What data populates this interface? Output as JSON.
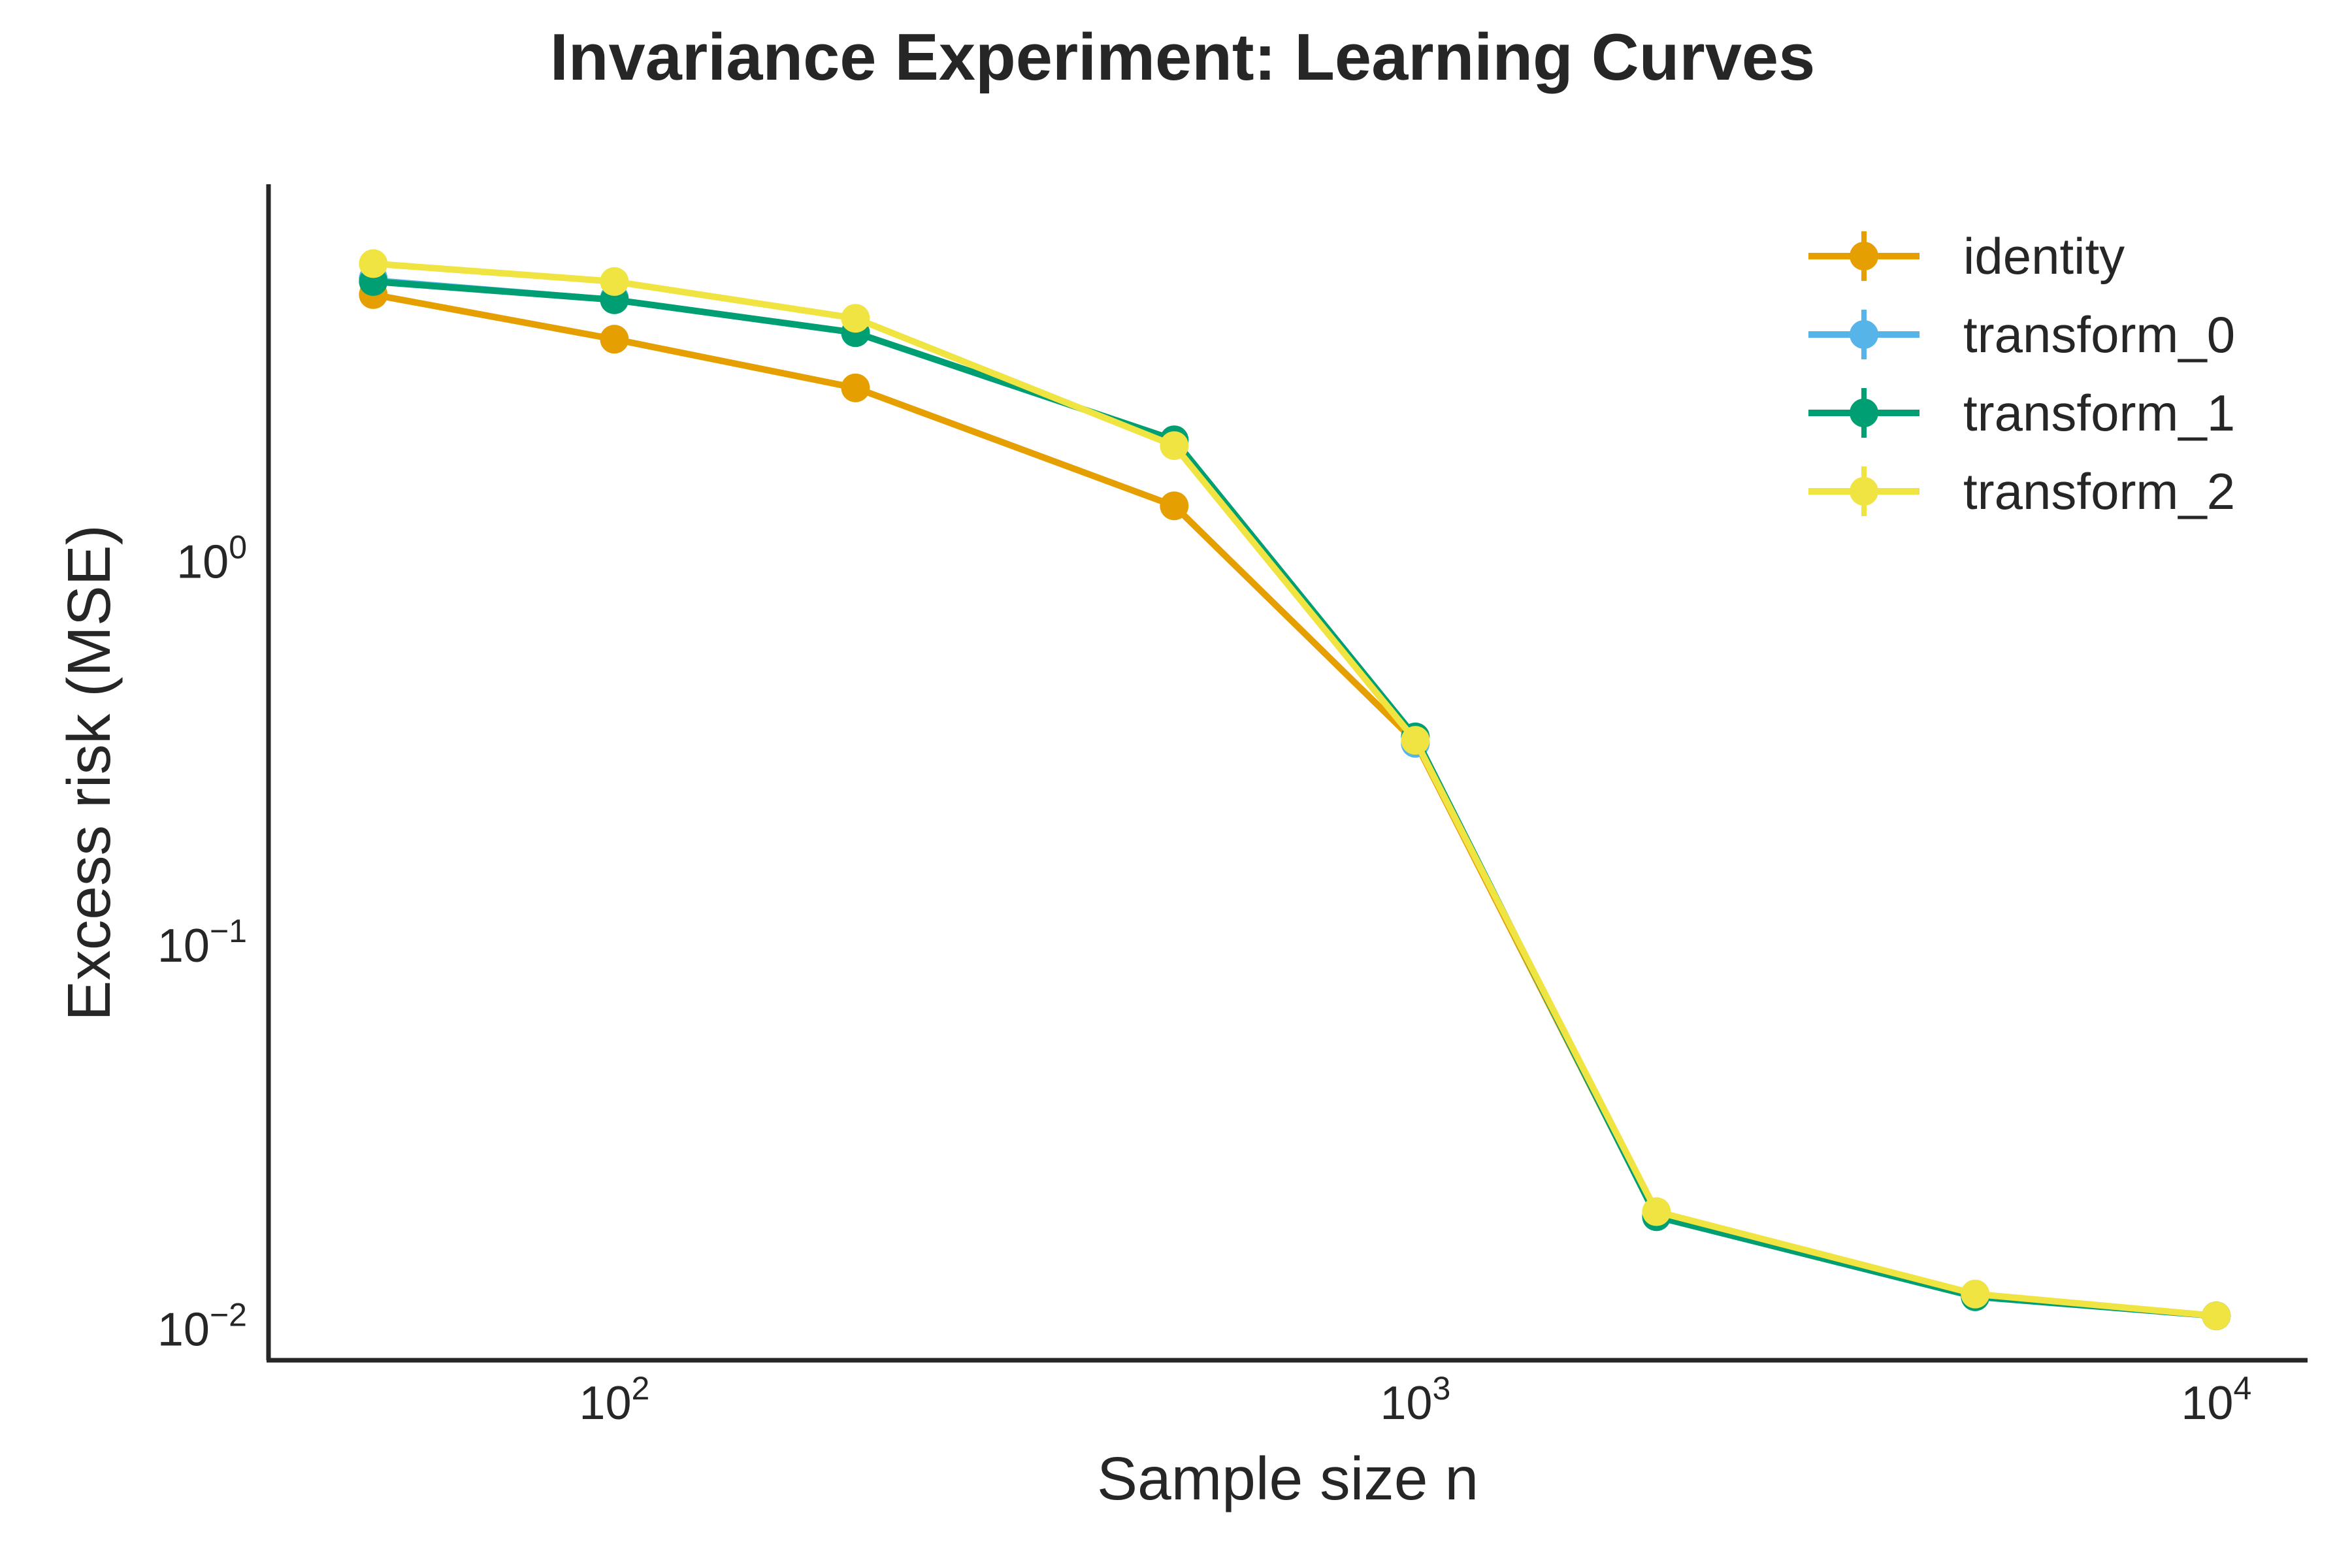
{
  "chart_data": {
    "type": "line",
    "title": "Invariance Experiment: Learning Curves",
    "xlabel": "Sample size n",
    "ylabel": "Excess risk (MSE)",
    "xscale": "log",
    "yscale": "log",
    "xlim": [
      37,
      13000
    ],
    "ylim": [
      0.0082,
      9.5
    ],
    "x_ticks": [
      {
        "value": 100,
        "base": "10",
        "exp": "2"
      },
      {
        "value": 1000,
        "base": "10",
        "exp": "3"
      },
      {
        "value": 10000,
        "base": "10",
        "exp": "4"
      }
    ],
    "y_ticks": [
      {
        "value": 1,
        "base": "10",
        "exp": "0"
      },
      {
        "value": 0.1,
        "base": "10",
        "exp": "−1"
      },
      {
        "value": 0.01,
        "base": "10",
        "exp": "−2"
      }
    ],
    "legend_position": "top-right",
    "x": [
      50,
      100,
      200,
      500,
      1000,
      2000,
      5000,
      10000
    ],
    "series": [
      {
        "name": "identity",
        "color": "#E69F00",
        "values": [
          4.9,
          3.75,
          2.8,
          1.38,
          0.335,
          0.0195,
          0.0121,
          0.0107
        ]
      },
      {
        "name": "transform_0",
        "color": "#56B4E9",
        "values": [
          5.4,
          4.8,
          3.9,
          2.05,
          0.332,
          0.0195,
          0.0121,
          0.0107
        ]
      },
      {
        "name": "transform_1",
        "color": "#009E73",
        "values": [
          5.3,
          4.75,
          3.9,
          2.05,
          0.345,
          0.0194,
          0.012,
          0.0107
        ]
      },
      {
        "name": "transform_2",
        "color": "#F0E442",
        "values": [
          5.9,
          5.3,
          4.25,
          1.98,
          0.338,
          0.02,
          0.0122,
          0.0107
        ]
      }
    ]
  }
}
